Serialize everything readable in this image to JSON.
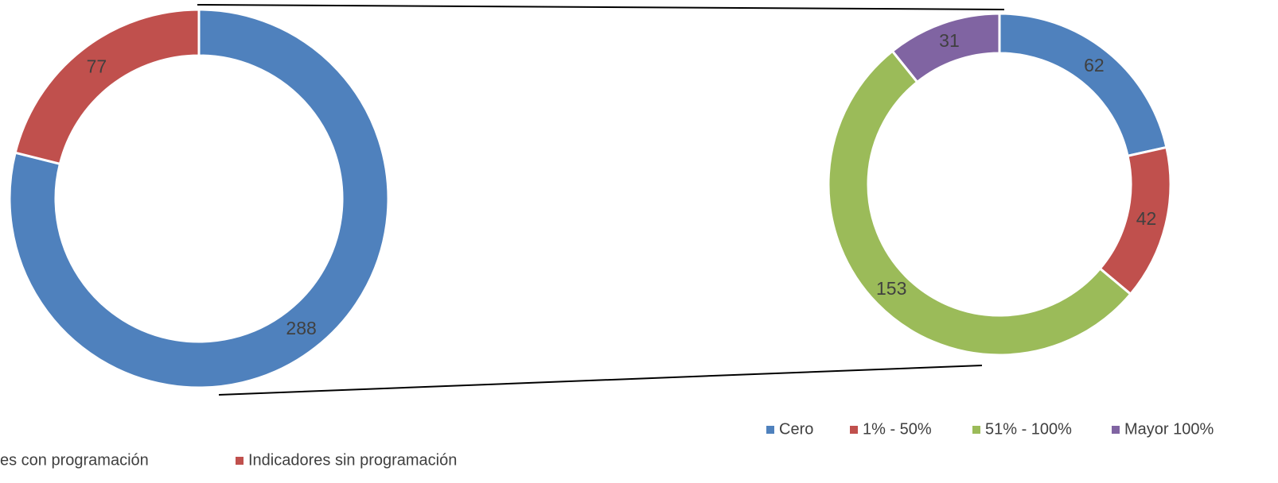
{
  "chart_data": [
    {
      "type": "donut",
      "categories": [
        "es con programación",
        "Indicadores sin programación"
      ],
      "values": [
        288,
        77
      ],
      "colors": [
        "#4f81bd",
        "#c0504d"
      ]
    },
    {
      "type": "donut",
      "categories": [
        "Cero",
        "1% - 50%",
        "51% - 100%",
        "Mayor 100%"
      ],
      "values": [
        62,
        42,
        153,
        31
      ],
      "colors": [
        "#4f81bd",
        "#c0504d",
        "#9bbb59",
        "#8064a2"
      ]
    }
  ]
}
